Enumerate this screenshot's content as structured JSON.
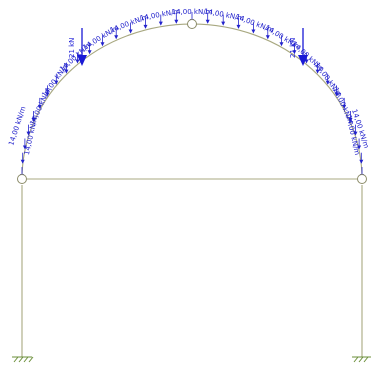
{
  "colors": {
    "member": "#a8a880",
    "distributed_load": "#2222cc",
    "point_load": "#1a1ad6",
    "support": "#6b8f3a"
  },
  "point_loads": [
    {
      "id": "left",
      "label": "21 kN",
      "side": "left"
    },
    {
      "id": "right",
      "label": "21 kN",
      "side": "right"
    }
  ],
  "distributed_load": {
    "label_left_edge": "14,00 kN/m",
    "label_right_edge": "14,00 kN/m",
    "label_repeat": "14,00 kN/m"
  },
  "supports": [
    {
      "id": "left-base",
      "type": "fixed"
    },
    {
      "id": "right-base",
      "type": "fixed"
    }
  ],
  "hinges": [
    {
      "id": "crown"
    },
    {
      "id": "left-knee"
    },
    {
      "id": "right-knee"
    }
  ]
}
